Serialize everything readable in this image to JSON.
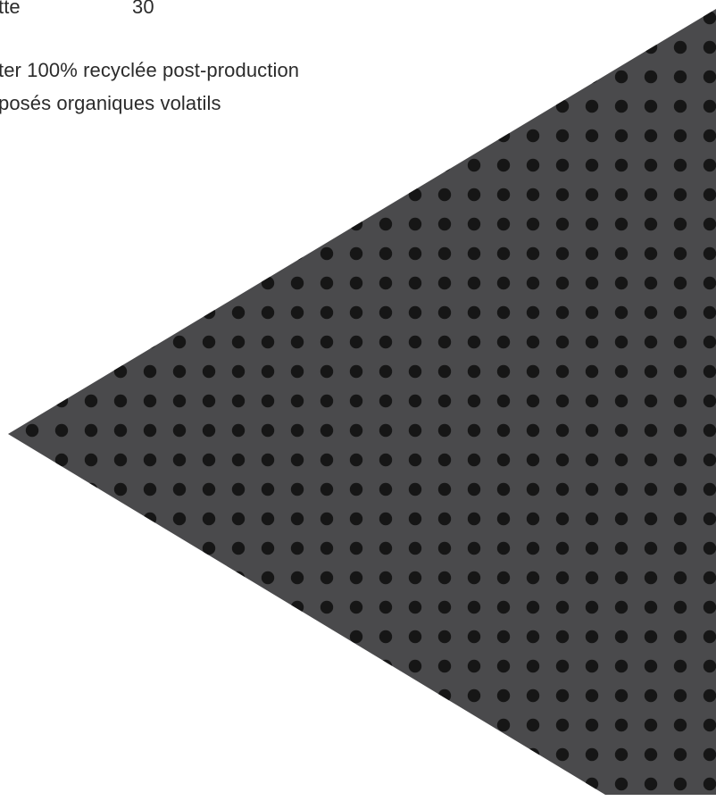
{
  "document": {
    "row_label": "tte",
    "row_value": "30",
    "line_1": "ter 100% recyclée post-production",
    "line_2": "posés organiques volatils"
  },
  "decor": {
    "triangle_color": "#4a4a4c",
    "dot_color": "#161616"
  }
}
